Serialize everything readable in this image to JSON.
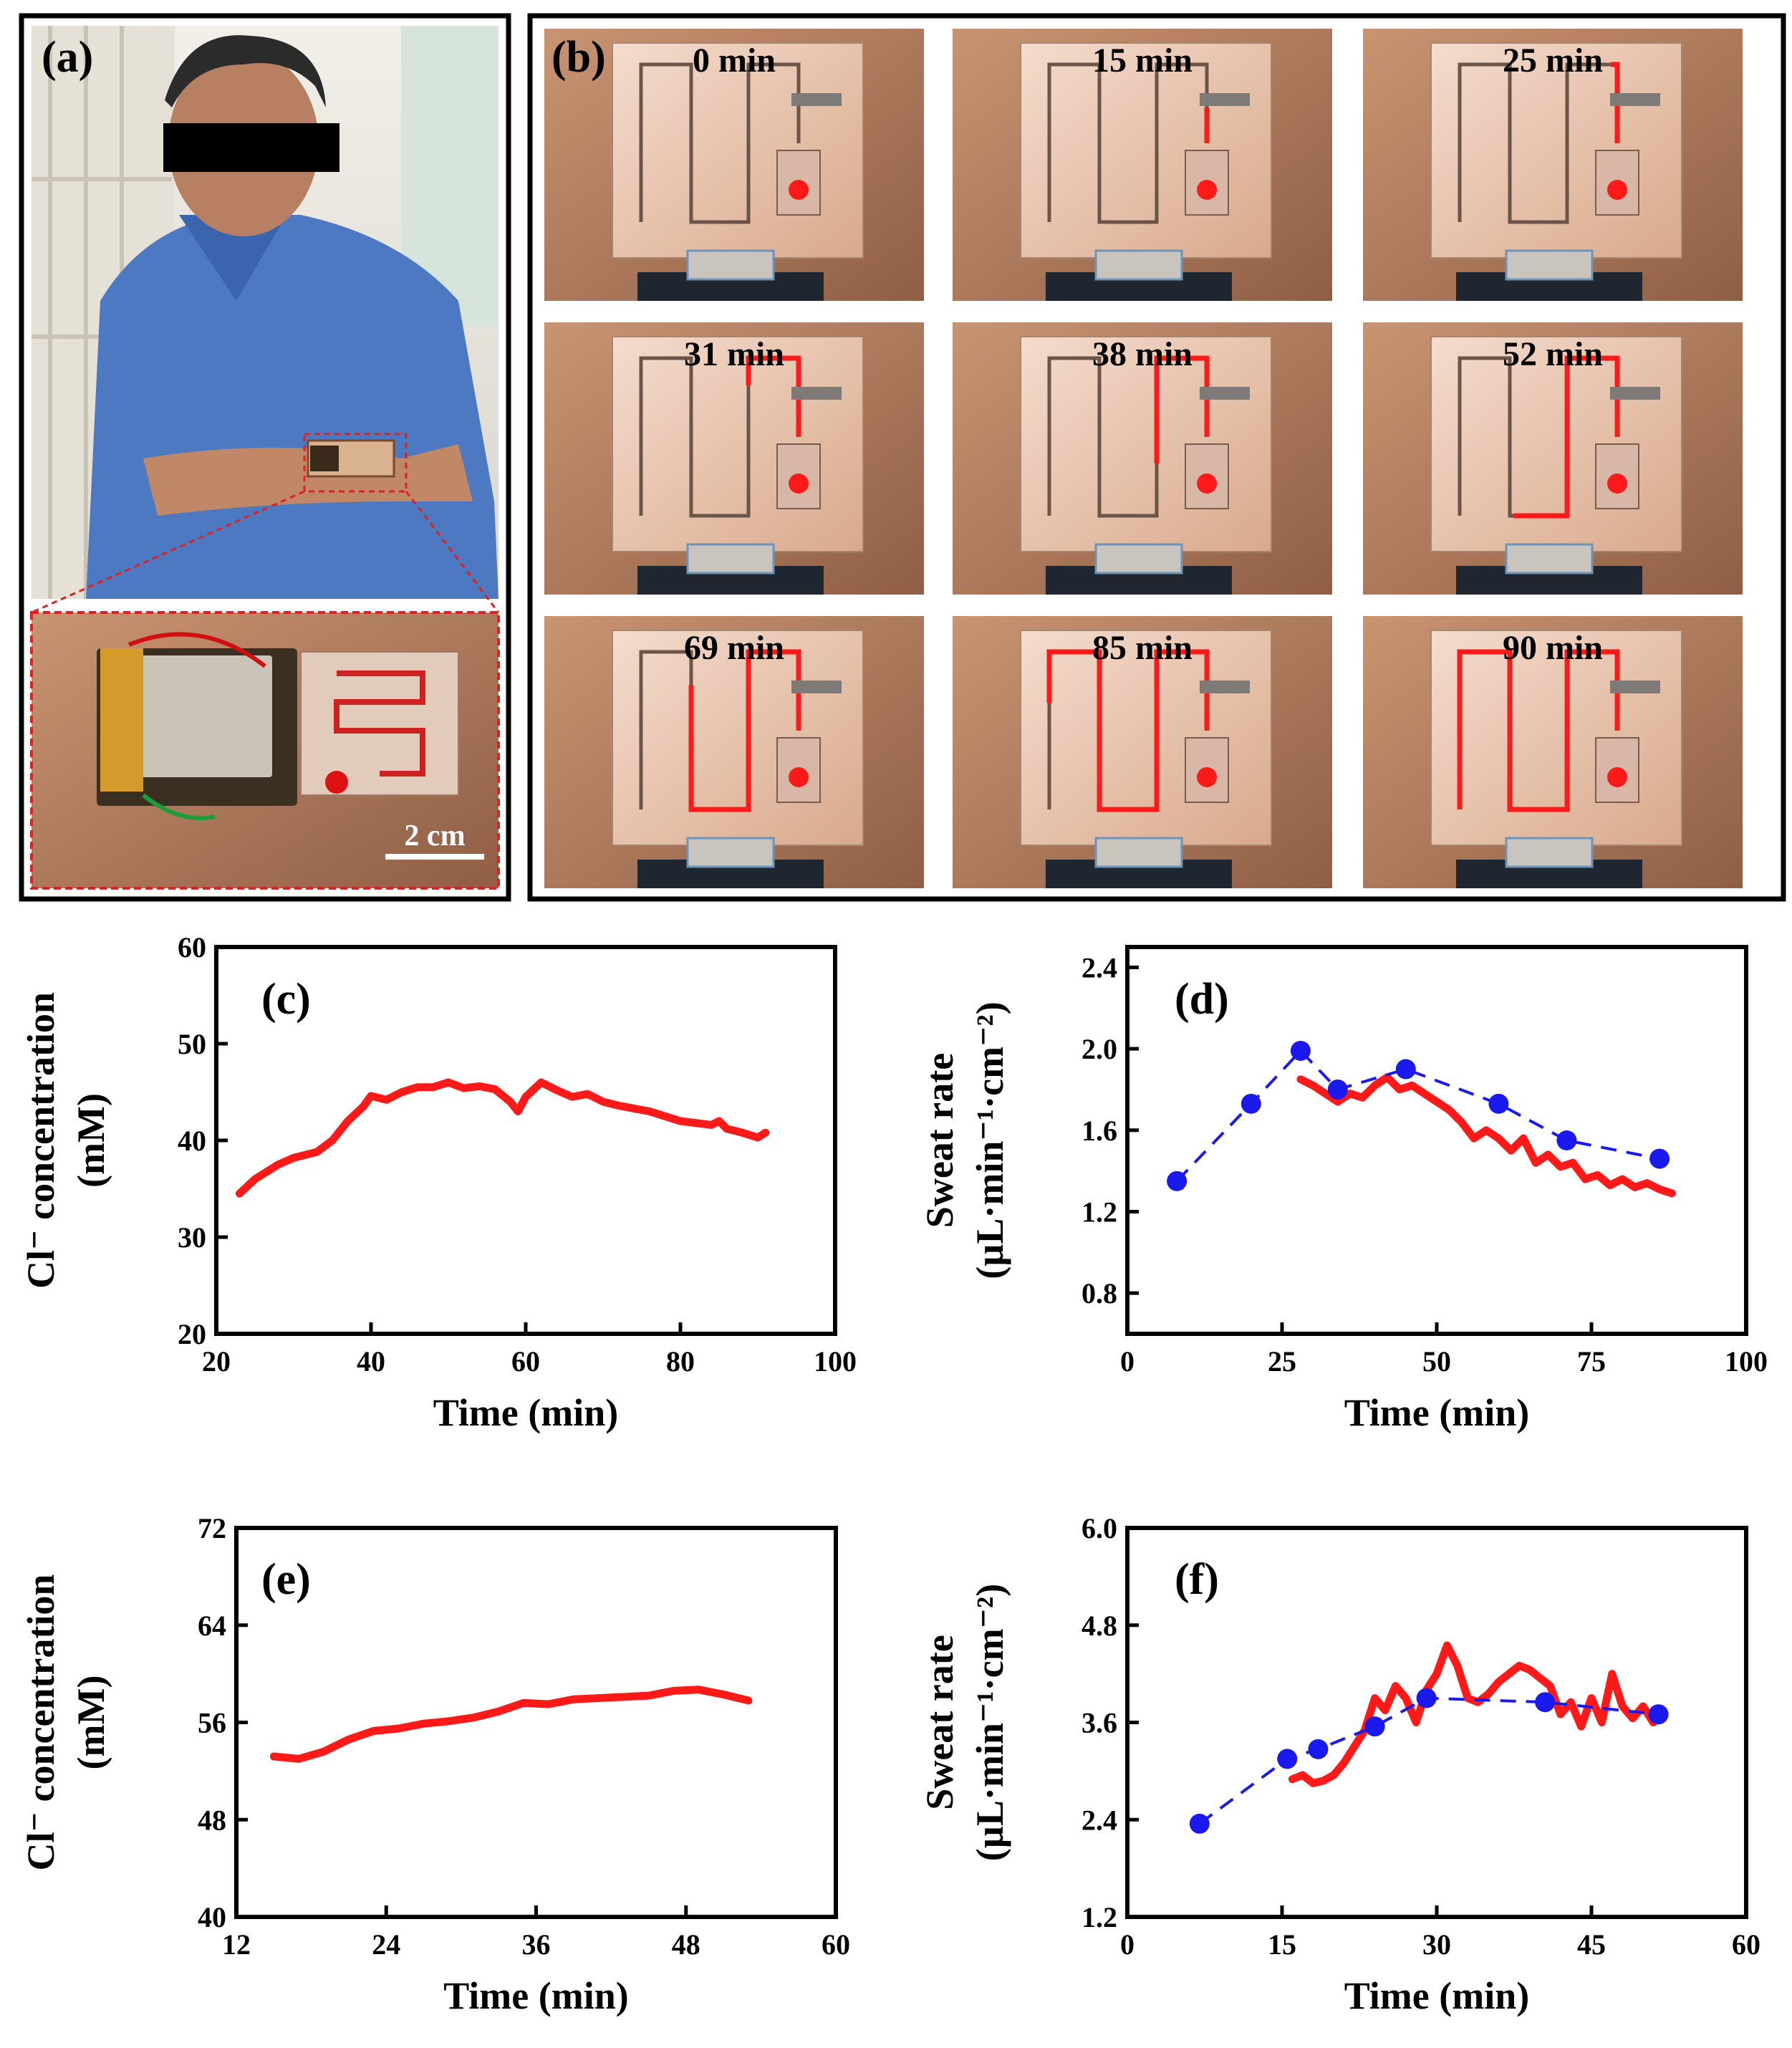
{
  "panel_a": {
    "label": "(a)",
    "scale_bar_label": "2 cm"
  },
  "panel_b": {
    "label": "(b)",
    "frames": [
      {
        "time": "0 min",
        "fill": 0.0
      },
      {
        "time": "15 min",
        "fill": 0.05
      },
      {
        "time": "25 min",
        "fill": 0.12
      },
      {
        "time": "31 min",
        "fill": 0.22
      },
      {
        "time": "38 min",
        "fill": 0.33
      },
      {
        "time": "52 min",
        "fill": 0.48
      },
      {
        "time": "69 min",
        "fill": 0.66
      },
      {
        "time": "85 min",
        "fill": 0.85
      },
      {
        "time": "90 min",
        "fill": 1.0
      }
    ]
  },
  "colors": {
    "measured": "#ff1a1a",
    "reference": "#1a1aee",
    "axis": "#000000",
    "skin": "#b98565"
  },
  "chart_data": [
    {
      "id": "c",
      "type": "line",
      "label": "(c)",
      "xlabel": "Time (min)",
      "ylabel": [
        "Cl⁻ concentration",
        "(mM)"
      ],
      "xlim": [
        20,
        100
      ],
      "ylim": [
        20,
        60
      ],
      "xticks": [
        20,
        40,
        60,
        80,
        100
      ],
      "yticks": [
        20,
        30,
        40,
        50,
        60
      ],
      "series": [
        {
          "name": "measured",
          "style": "thick",
          "x": [
            23,
            25,
            28,
            30,
            33,
            35,
            37,
            39,
            40,
            42,
            44,
            46,
            48,
            50,
            52,
            54,
            56,
            58,
            59,
            60,
            62,
            64,
            66,
            68,
            70,
            72,
            74,
            76,
            78,
            80,
            82,
            84,
            85,
            86,
            88,
            90,
            91
          ],
          "y": [
            34.5,
            36,
            37.5,
            38.2,
            38.8,
            40,
            42,
            43.5,
            44.6,
            44.2,
            45,
            45.5,
            45.5,
            46,
            45.4,
            45.6,
            45.3,
            44,
            43,
            44.5,
            46,
            45.2,
            44.5,
            44.8,
            44,
            43.6,
            43.3,
            43,
            42.5,
            42,
            41.8,
            41.6,
            42,
            41.2,
            40.8,
            40.3,
            40.8
          ]
        }
      ]
    },
    {
      "id": "d",
      "type": "line",
      "label": "(d)",
      "xlabel": "Time (min)",
      "ylabel": [
        "Sweat rate",
        "(µL·min⁻¹·cm⁻²)"
      ],
      "xlim": [
        0,
        100
      ],
      "ylim": [
        0.6,
        2.5
      ],
      "xticks": [
        0,
        25,
        50,
        75,
        100
      ],
      "yticks": [
        0.8,
        1.2,
        1.6,
        2.0,
        2.4
      ],
      "ytick_labels": [
        "0.8",
        "1.2",
        "1.6",
        "2.0",
        "2.4"
      ],
      "series": [
        {
          "name": "measured",
          "style": "thick",
          "x": [
            28,
            30,
            32,
            34,
            36,
            38,
            40,
            42,
            44,
            46,
            48,
            50,
            52,
            54,
            56,
            58,
            60,
            62,
            64,
            66,
            68,
            70,
            72,
            74,
            76,
            78,
            80,
            82,
            84,
            86,
            88
          ],
          "y": [
            1.85,
            1.82,
            1.78,
            1.74,
            1.78,
            1.76,
            1.82,
            1.86,
            1.8,
            1.82,
            1.78,
            1.74,
            1.7,
            1.64,
            1.56,
            1.6,
            1.56,
            1.5,
            1.56,
            1.44,
            1.48,
            1.42,
            1.44,
            1.36,
            1.38,
            1.33,
            1.36,
            1.32,
            1.34,
            1.31,
            1.29
          ]
        },
        {
          "name": "reference",
          "style": "dashed-markers",
          "x": [
            8,
            20,
            28,
            34,
            45,
            60,
            71,
            86
          ],
          "y": [
            1.35,
            1.73,
            1.99,
            1.8,
            1.9,
            1.73,
            1.55,
            1.46
          ]
        }
      ]
    },
    {
      "id": "e",
      "type": "line",
      "label": "(e)",
      "xlabel": "Time (min)",
      "ylabel": [
        "Cl⁻ concentration",
        "(mM)"
      ],
      "xlim": [
        12,
        60
      ],
      "ylim": [
        40,
        72
      ],
      "xticks": [
        12,
        24,
        36,
        48,
        60
      ],
      "yticks": [
        40,
        48,
        56,
        64,
        72
      ],
      "series": [
        {
          "name": "measured",
          "style": "thick",
          "x": [
            15,
            17,
            19,
            21,
            23,
            25,
            27,
            29,
            31,
            33,
            35,
            37,
            39,
            41,
            43,
            45,
            47,
            49,
            51,
            53
          ],
          "y": [
            53.2,
            53.0,
            53.6,
            54.6,
            55.3,
            55.5,
            55.9,
            56.1,
            56.4,
            56.9,
            57.6,
            57.5,
            57.9,
            58.0,
            58.1,
            58.2,
            58.6,
            58.7,
            58.3,
            57.8
          ]
        }
      ]
    },
    {
      "id": "f",
      "type": "line",
      "label": "(f)",
      "xlabel": "Time (min)",
      "ylabel": [
        "Sweat rate",
        "(µL·min⁻¹·cm⁻²)"
      ],
      "xlim": [
        0,
        60
      ],
      "ylim": [
        1.2,
        6.0
      ],
      "xticks": [
        0,
        15,
        30,
        45,
        60
      ],
      "yticks": [
        1.2,
        2.4,
        3.6,
        4.8,
        6.0
      ],
      "ytick_labels": [
        "1.2",
        "2.4",
        "3.6",
        "4.8",
        "6.0"
      ],
      "series": [
        {
          "name": "measured",
          "style": "thick",
          "x": [
            16,
            17,
            18,
            19,
            20,
            21,
            22,
            23,
            24,
            25,
            26,
            27,
            28,
            29,
            30,
            31,
            32,
            33,
            34,
            35,
            36,
            37,
            38,
            39,
            40,
            41,
            42,
            43,
            44,
            45,
            46,
            47,
            48,
            49,
            50,
            51
          ],
          "y": [
            2.9,
            2.95,
            2.85,
            2.88,
            2.95,
            3.1,
            3.3,
            3.5,
            3.9,
            3.75,
            4.05,
            3.9,
            3.6,
            4.0,
            4.2,
            4.55,
            4.3,
            3.9,
            3.85,
            3.95,
            4.1,
            4.2,
            4.3,
            4.25,
            4.15,
            4.05,
            3.7,
            3.85,
            3.55,
            3.9,
            3.6,
            4.2,
            3.8,
            3.65,
            3.8,
            3.6
          ]
        },
        {
          "name": "reference",
          "style": "dashed-markers",
          "x": [
            7,
            15.5,
            18.5,
            24,
            29,
            40.5,
            51.5
          ],
          "y": [
            2.35,
            3.15,
            3.27,
            3.55,
            3.9,
            3.85,
            3.7
          ]
        }
      ]
    }
  ]
}
